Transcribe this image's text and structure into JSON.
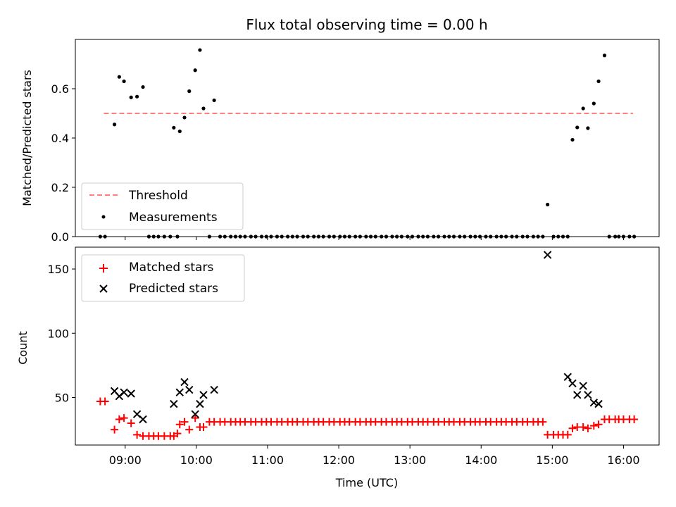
{
  "figure": {
    "title": "Flux total observing time = 0.00 h"
  },
  "chart_data": [
    {
      "type": "scatter",
      "panel": "top",
      "title": "Flux total observing time = 0.00 h",
      "xlabel": "",
      "ylabel": "Matched/Predicted stars",
      "xlim": [
        "08:18",
        "16:30"
      ],
      "ylim": [
        0,
        0.8
      ],
      "yticks": [
        0.0,
        0.2,
        0.4,
        0.6
      ],
      "ytick_labels": [
        "0.0",
        "0.2",
        "0.4",
        "0.6"
      ],
      "legend": {
        "position": "lower-left",
        "entries": [
          {
            "label": "Threshold",
            "style": "dashed-line",
            "color": "#ff7f7f"
          },
          {
            "label": "Measurements",
            "style": "dot",
            "color": "#000000"
          }
        ]
      },
      "series": [
        {
          "name": "Threshold",
          "kind": "line",
          "color": "#ff7f7f",
          "x": [
            "08:42",
            "16:08"
          ],
          "y": [
            0.5,
            0.5
          ]
        },
        {
          "name": "Measurements",
          "kind": "scatter",
          "color": "#000000",
          "x": [
            "08:39",
            "08:43",
            "08:51",
            "08:55",
            "08:59",
            "09:05",
            "09:10",
            "09:15",
            "09:20",
            "09:24",
            "09:28",
            "09:33",
            "09:38",
            "09:41",
            "09:44",
            "09:46",
            "09:50",
            "09:54",
            "09:59",
            "10:03",
            "10:06",
            "10:11",
            "10:15",
            "10:20",
            "10:24",
            "10:29",
            "10:33",
            "10:37",
            "10:41",
            "10:46",
            "10:50",
            "10:55",
            "10:59",
            "11:03",
            "11:08",
            "11:12",
            "11:17",
            "11:21",
            "11:25",
            "11:30",
            "11:34",
            "11:39",
            "11:43",
            "11:47",
            "11:52",
            "11:56",
            "12:01",
            "12:05",
            "12:09",
            "12:14",
            "12:18",
            "12:23",
            "12:27",
            "12:31",
            "12:36",
            "12:40",
            "12:45",
            "12:49",
            "12:53",
            "12:58",
            "13:02",
            "13:07",
            "13:11",
            "13:15",
            "13:20",
            "13:24",
            "13:29",
            "13:33",
            "13:37",
            "13:42",
            "13:46",
            "13:51",
            "13:55",
            "13:59",
            "14:04",
            "14:08",
            "14:13",
            "14:17",
            "14:21",
            "14:26",
            "14:30",
            "14:35",
            "14:39",
            "14:44",
            "14:48",
            "14:52",
            "14:56",
            "15:01",
            "15:05",
            "15:09",
            "15:13",
            "15:17",
            "15:21",
            "15:26",
            "15:30",
            "15:35",
            "15:39",
            "15:44",
            "15:48",
            "15:53",
            "15:56",
            "16:00",
            "16:05",
            "16:09"
          ],
          "y": [
            0.0,
            0.0,
            0.455,
            0.648,
            0.63,
            0.565,
            0.568,
            0.607,
            0.0,
            0.0,
            0.0,
            0.0,
            0.0,
            0.442,
            0.0,
            0.427,
            0.483,
            0.59,
            0.675,
            0.757,
            0.52,
            0.0,
            0.553,
            0.0,
            0.0,
            0.0,
            0.0,
            0.0,
            0.0,
            0.0,
            0.0,
            0.0,
            0.0,
            0.0,
            0.0,
            0.0,
            0.0,
            0.0,
            0.0,
            0.0,
            0.0,
            0.0,
            0.0,
            0.0,
            0.0,
            0.0,
            0.0,
            0.0,
            0.0,
            0.0,
            0.0,
            0.0,
            0.0,
            0.0,
            0.0,
            0.0,
            0.0,
            0.0,
            0.0,
            0.0,
            0.0,
            0.0,
            0.0,
            0.0,
            0.0,
            0.0,
            0.0,
            0.0,
            0.0,
            0.0,
            0.0,
            0.0,
            0.0,
            0.0,
            0.0,
            0.0,
            0.0,
            0.0,
            0.0,
            0.0,
            0.0,
            0.0,
            0.0,
            0.0,
            0.0,
            0.0,
            0.13,
            0.0,
            0.0,
            0.0,
            0.0,
            0.393,
            0.443,
            0.52,
            0.44,
            0.54,
            0.63,
            0.735,
            0.0,
            0.0,
            0.0,
            0.0,
            0.0,
            0.0
          ]
        }
      ]
    },
    {
      "type": "scatter",
      "panel": "bottom",
      "title": "",
      "xlabel": "Time (UTC)",
      "ylabel": "Count",
      "xlim": [
        "08:18",
        "16:30"
      ],
      "ylim": [
        13,
        167
      ],
      "xticks": [
        "09:00",
        "10:00",
        "11:00",
        "12:00",
        "13:00",
        "14:00",
        "15:00",
        "16:00"
      ],
      "xtick_labels": [
        "09:00",
        "10:00",
        "11:00",
        "12:00",
        "13:00",
        "14:00",
        "15:00",
        "16:00"
      ],
      "yticks": [
        50,
        100,
        150
      ],
      "ytick_labels": [
        "50",
        "100",
        "150"
      ],
      "legend": {
        "position": "upper-left",
        "entries": [
          {
            "label": "Matched stars",
            "marker": "+",
            "color": "#ff0000"
          },
          {
            "label": "Predicted stars",
            "marker": "x",
            "color": "#000000"
          }
        ]
      },
      "series": [
        {
          "name": "Matched stars",
          "marker": "+",
          "color": "#ff0000",
          "x": [
            "08:39",
            "08:43",
            "08:51",
            "08:55",
            "08:59",
            "09:05",
            "09:10",
            "09:15",
            "09:20",
            "09:24",
            "09:28",
            "09:33",
            "09:38",
            "09:41",
            "09:44",
            "09:46",
            "09:50",
            "09:54",
            "09:59",
            "10:03",
            "10:06",
            "10:11",
            "10:15",
            "10:20",
            "10:24",
            "10:29",
            "10:33",
            "10:37",
            "10:41",
            "10:46",
            "10:50",
            "10:55",
            "10:59",
            "11:03",
            "11:08",
            "11:12",
            "11:17",
            "11:21",
            "11:25",
            "11:30",
            "11:34",
            "11:39",
            "11:43",
            "11:47",
            "11:52",
            "11:56",
            "12:01",
            "12:05",
            "12:09",
            "12:14",
            "12:18",
            "12:23",
            "12:27",
            "12:31",
            "12:36",
            "12:40",
            "12:45",
            "12:49",
            "12:53",
            "12:58",
            "13:02",
            "13:07",
            "13:11",
            "13:15",
            "13:20",
            "13:24",
            "13:29",
            "13:33",
            "13:37",
            "13:42",
            "13:46",
            "13:51",
            "13:55",
            "13:59",
            "14:04",
            "14:08",
            "14:13",
            "14:17",
            "14:21",
            "14:26",
            "14:30",
            "14:35",
            "14:39",
            "14:44",
            "14:48",
            "14:52",
            "14:56",
            "15:01",
            "15:05",
            "15:09",
            "15:13",
            "15:17",
            "15:21",
            "15:26",
            "15:30",
            "15:35",
            "15:39",
            "15:44",
            "15:48",
            "15:53",
            "15:56",
            "16:00",
            "16:05",
            "16:09"
          ],
          "y": [
            47,
            47,
            25,
            33,
            34,
            30,
            21,
            20,
            20,
            20,
            20,
            20,
            20,
            20,
            22,
            29,
            31,
            25,
            34,
            27,
            27,
            31,
            31,
            31,
            31,
            31,
            31,
            31,
            31,
            31,
            31,
            31,
            31,
            31,
            31,
            31,
            31,
            31,
            31,
            31,
            31,
            31,
            31,
            31,
            31,
            31,
            31,
            31,
            31,
            31,
            31,
            31,
            31,
            31,
            31,
            31,
            31,
            31,
            31,
            31,
            31,
            31,
            31,
            31,
            31,
            31,
            31,
            31,
            31,
            31,
            31,
            31,
            31,
            31,
            31,
            31,
            31,
            31,
            31,
            31,
            31,
            31,
            31,
            31,
            31,
            31,
            21,
            21,
            21,
            21,
            21,
            26,
            27,
            27,
            26,
            28,
            29,
            33,
            33,
            33,
            33,
            33,
            33,
            33
          ]
        },
        {
          "name": "Predicted stars",
          "marker": "x",
          "color": "#000000",
          "x": [
            "08:51",
            "08:55",
            "08:59",
            "09:05",
            "09:10",
            "09:15",
            "09:41",
            "09:46",
            "09:50",
            "09:54",
            "09:59",
            "10:03",
            "10:06",
            "10:15",
            "14:56",
            "15:13",
            "15:17",
            "15:21",
            "15:26",
            "15:30",
            "15:35",
            "15:39"
          ],
          "y": [
            55,
            51,
            54,
            53,
            37,
            33,
            45,
            54,
            62,
            56,
            37,
            45,
            52,
            56,
            161,
            66,
            61,
            52,
            59,
            52,
            46,
            45
          ]
        }
      ]
    }
  ]
}
